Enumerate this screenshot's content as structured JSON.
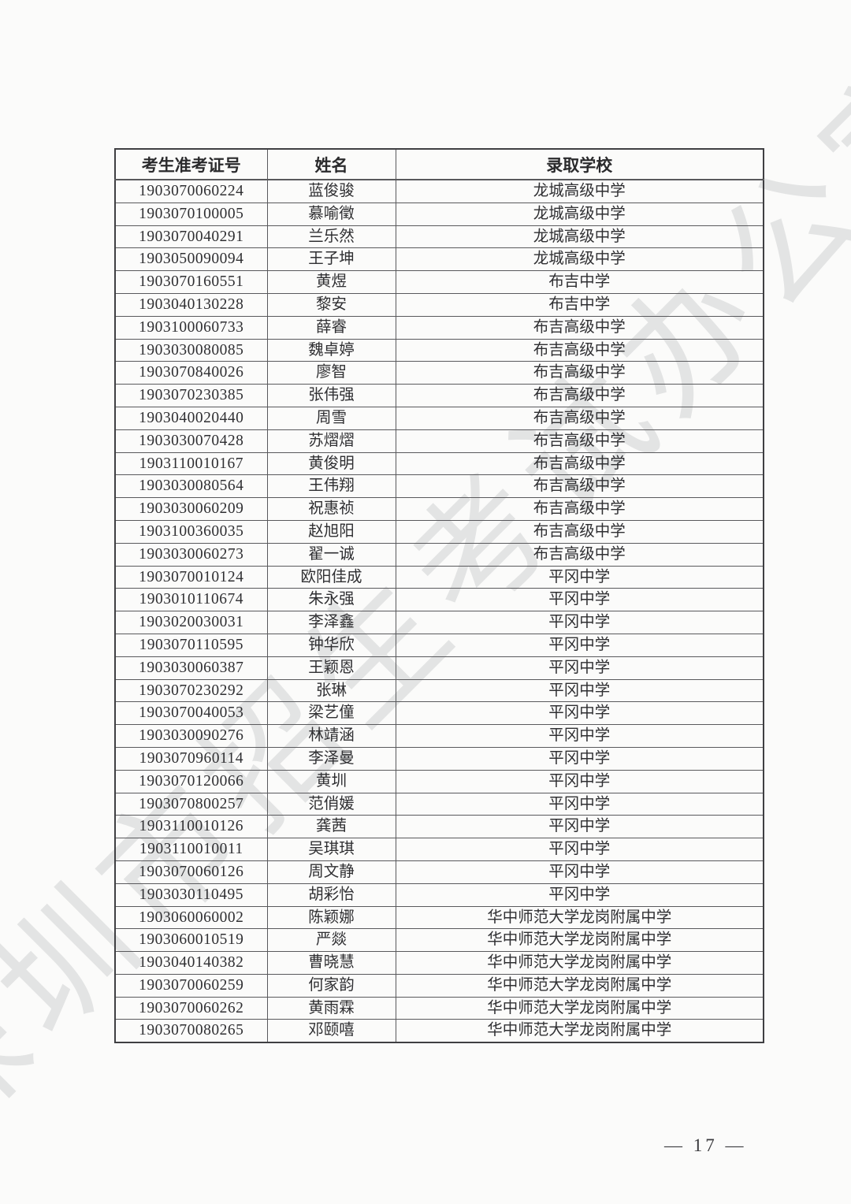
{
  "page": {
    "watermark": "深圳市招生考试办公室",
    "page_number_display": "— 17 —"
  },
  "table": {
    "headers": [
      "考生准考证号",
      "姓名",
      "录取学校"
    ],
    "rows": [
      [
        "1903070060224",
        "蓝俊骏",
        "龙城高级中学"
      ],
      [
        "1903070100005",
        "慕喻徵",
        "龙城高级中学"
      ],
      [
        "1903070040291",
        "兰乐然",
        "龙城高级中学"
      ],
      [
        "1903050090094",
        "王子坤",
        "龙城高级中学"
      ],
      [
        "1903070160551",
        "黄煜",
        "布吉中学"
      ],
      [
        "1903040130228",
        "黎安",
        "布吉中学"
      ],
      [
        "1903100060733",
        "薛睿",
        "布吉高级中学"
      ],
      [
        "1903030080085",
        "魏卓婷",
        "布吉高级中学"
      ],
      [
        "1903070840026",
        "廖智",
        "布吉高级中学"
      ],
      [
        "1903070230385",
        "张伟强",
        "布吉高级中学"
      ],
      [
        "1903040020440",
        "周雪",
        "布吉高级中学"
      ],
      [
        "1903030070428",
        "苏熠熠",
        "布吉高级中学"
      ],
      [
        "1903110010167",
        "黄俊明",
        "布吉高级中学"
      ],
      [
        "1903030080564",
        "王伟翔",
        "布吉高级中学"
      ],
      [
        "1903030060209",
        "祝惠祯",
        "布吉高级中学"
      ],
      [
        "1903100360035",
        "赵旭阳",
        "布吉高级中学"
      ],
      [
        "1903030060273",
        "翟一诚",
        "布吉高级中学"
      ],
      [
        "1903070010124",
        "欧阳佳成",
        "平冈中学"
      ],
      [
        "1903010110674",
        "朱永强",
        "平冈中学"
      ],
      [
        "1903020030031",
        "李泽鑫",
        "平冈中学"
      ],
      [
        "1903070110595",
        "钟华欣",
        "平冈中学"
      ],
      [
        "1903030060387",
        "王颖恩",
        "平冈中学"
      ],
      [
        "1903070230292",
        "张琳",
        "平冈中学"
      ],
      [
        "1903070040053",
        "梁艺僮",
        "平冈中学"
      ],
      [
        "1903030090276",
        "林靖涵",
        "平冈中学"
      ],
      [
        "1903070960114",
        "李泽曼",
        "平冈中学"
      ],
      [
        "1903070120066",
        "黄圳",
        "平冈中学"
      ],
      [
        "1903070800257",
        "范俏媛",
        "平冈中学"
      ],
      [
        "1903110010126",
        "龚茜",
        "平冈中学"
      ],
      [
        "1903110010011",
        "吴琪琪",
        "平冈中学"
      ],
      [
        "1903070060126",
        "周文静",
        "平冈中学"
      ],
      [
        "1903030110495",
        "胡彩怡",
        "平冈中学"
      ],
      [
        "1903060060002",
        "陈颖娜",
        "华中师范大学龙岗附属中学"
      ],
      [
        "1903060010519",
        "严燚",
        "华中师范大学龙岗附属中学"
      ],
      [
        "1903040140382",
        "曹晓慧",
        "华中师范大学龙岗附属中学"
      ],
      [
        "1903070060259",
        "何家韵",
        "华中师范大学龙岗附属中学"
      ],
      [
        "1903070060262",
        "黄雨霖",
        "华中师范大学龙岗附属中学"
      ],
      [
        "1903070080265",
        "邓颐嘻",
        "华中师范大学龙岗附属中学"
      ]
    ]
  }
}
